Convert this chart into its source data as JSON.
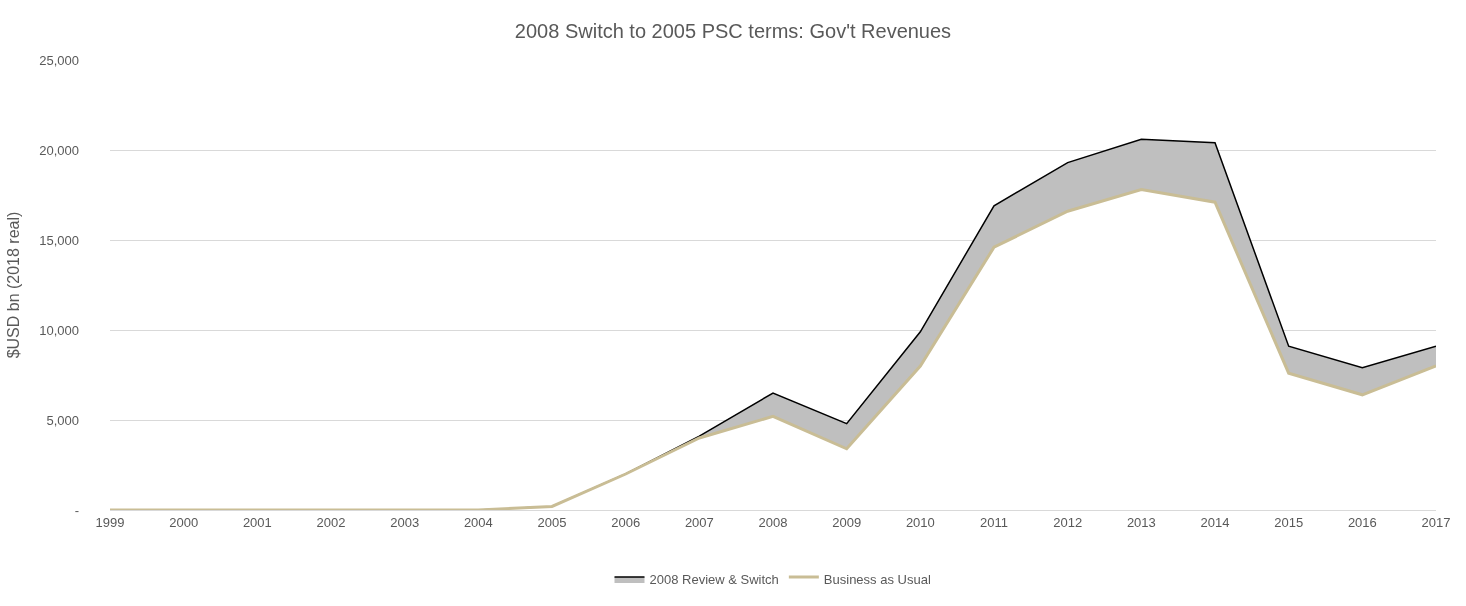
{
  "chart_data": {
    "type": "area",
    "title": "2008 Switch to 2005 PSC terms: Gov't Revenues",
    "ylabel": "$USD bn (2018 real)",
    "categories": [
      "1999",
      "2000",
      "2001",
      "2002",
      "2003",
      "2004",
      "2005",
      "2006",
      "2007",
      "2008",
      "2009",
      "2010",
      "2011",
      "2012",
      "2013",
      "2014",
      "2015",
      "2016",
      "2017"
    ],
    "series": [
      {
        "name": "2008 Review & Switch",
        "color": "#bfbfbf",
        "values": [
          0,
          0,
          0,
          0,
          0,
          0,
          200,
          2000,
          4100,
          6500,
          4800,
          9900,
          16900,
          19300,
          20600,
          20400,
          9100,
          7900,
          9100
        ]
      },
      {
        "name": "Business as Usual",
        "color": "#c9bd95",
        "values": [
          0,
          0,
          0,
          0,
          0,
          0,
          200,
          2000,
          4000,
          5200,
          3400,
          8000,
          14600,
          16600,
          17800,
          17100,
          7600,
          6400,
          8000
        ]
      }
    ],
    "ylim": [
      0,
      25000
    ],
    "yticks": [
      {
        "value": 0,
        "label": "-"
      },
      {
        "value": 5000,
        "label": "5,000"
      },
      {
        "value": 10000,
        "label": "10,000"
      },
      {
        "value": 15000,
        "label": "15,000"
      },
      {
        "value": 20000,
        "label": "20,000"
      },
      {
        "value": 25000,
        "label": "25,000"
      }
    ],
    "grid": "y",
    "legend": "bottom"
  }
}
